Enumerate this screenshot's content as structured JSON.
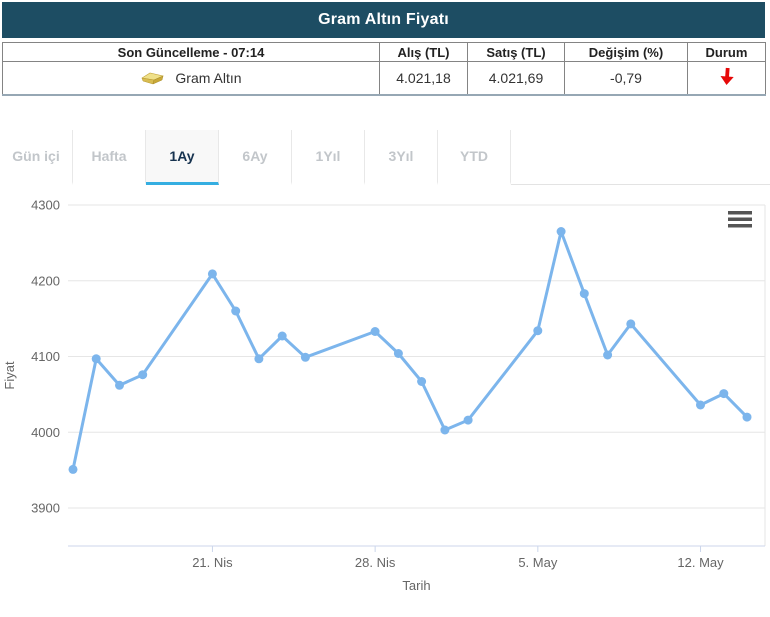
{
  "widget": {
    "title": "Gram Altın Fiyatı",
    "table": {
      "headers": [
        "Son Güncelleme - 07:14",
        "Alış (TL)",
        "Satış (TL)",
        "Değişim (%)",
        "Durum"
      ],
      "row": {
        "icon": "gold-ingot-icon",
        "instrument": "Gram Altın",
        "buy": "4.021,18",
        "sell": "4.021,69",
        "change_pct": "-0,79",
        "status": "down-arrow",
        "status_color": "#e60808"
      }
    }
  },
  "tabs": {
    "items": [
      {
        "label": "Gün içi",
        "active": false
      },
      {
        "label": "Hafta",
        "active": false
      },
      {
        "label": "1Ay",
        "active": true
      },
      {
        "label": "6Ay",
        "active": false
      },
      {
        "label": "1Yıl",
        "active": false
      },
      {
        "label": "3Yıl",
        "active": false
      },
      {
        "label": "YTD",
        "active": false
      }
    ],
    "active_underline_color": "#35aee1"
  },
  "chart_data": {
    "type": "line",
    "title": "",
    "xlabel": "Tarih",
    "ylabel": "Fiyat",
    "ylim": [
      3850,
      4320
    ],
    "yticks": [
      3900,
      4000,
      4100,
      4200,
      4300
    ],
    "xticks": [
      {
        "label": "21. Nis",
        "day": 6
      },
      {
        "label": "28. Nis",
        "day": 13
      },
      {
        "label": "5. May",
        "day": 20
      },
      {
        "label": "12. May",
        "day": 27
      }
    ],
    "grid": true,
    "legend": false,
    "menu_icon": "hamburger-menu-icon",
    "series": [
      {
        "name": "Gram Altın Fiyat",
        "color": "#7cb5ec",
        "points": [
          {
            "date": "15 Nis",
            "day": 0,
            "value": 3951
          },
          {
            "date": "16 Nis",
            "day": 1,
            "value": 4097
          },
          {
            "date": "17 Nis",
            "day": 2,
            "value": 4062
          },
          {
            "date": "18 Nis",
            "day": 3,
            "value": 4076
          },
          {
            "date": "21 Nis",
            "day": 6,
            "value": 4209
          },
          {
            "date": "22 Nis",
            "day": 7,
            "value": 4160
          },
          {
            "date": "23 Nis",
            "day": 8,
            "value": 4097
          },
          {
            "date": "24 Nis",
            "day": 9,
            "value": 4127
          },
          {
            "date": "25 Nis",
            "day": 10,
            "value": 4099
          },
          {
            "date": "28 Nis",
            "day": 13,
            "value": 4133
          },
          {
            "date": "29 Nis",
            "day": 14,
            "value": 4104
          },
          {
            "date": "30 Nis",
            "day": 15,
            "value": 4067
          },
          {
            "date": "1 May",
            "day": 16,
            "value": 4003
          },
          {
            "date": "2 May",
            "day": 17,
            "value": 4016
          },
          {
            "date": "5 May",
            "day": 20,
            "value": 4134
          },
          {
            "date": "6 May",
            "day": 21,
            "value": 4265
          },
          {
            "date": "7 May",
            "day": 22,
            "value": 4183
          },
          {
            "date": "8 May",
            "day": 23,
            "value": 4102
          },
          {
            "date": "9 May",
            "day": 24,
            "value": 4143
          },
          {
            "date": "12 May",
            "day": 27,
            "value": 4036
          },
          {
            "date": "13 May",
            "day": 28,
            "value": 4051
          },
          {
            "date": "14 May",
            "day": 29,
            "value": 4020
          }
        ]
      }
    ]
  },
  "colors": {
    "header_bg": "#1d4d63",
    "line": "#7cb5ec",
    "grid": "#e6e6e6",
    "axis_line": "#ccd6eb",
    "axis_text": "#666666",
    "negative": "#e60808"
  }
}
